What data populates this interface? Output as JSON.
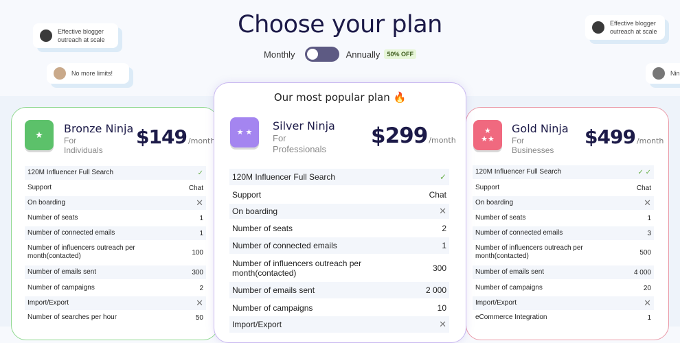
{
  "title": "Choose your plan",
  "toggle": {
    "monthly": "Monthly",
    "annually": "Annually",
    "discount": "50% OFF",
    "state": "monthly"
  },
  "bubbles": [
    {
      "text": "Effective blogger outreach at scale"
    },
    {
      "text": "No more limits!"
    },
    {
      "text": "Effective blogger outreach at scale"
    },
    {
      "text": "Nin So"
    }
  ],
  "colors": {
    "bronze": "#5cc16a",
    "silver": "#a485f0",
    "gold": "#f0697f",
    "heading": "#1c1a48"
  },
  "plans": [
    {
      "name": "Bronze Ninja",
      "for": "For",
      "audience": "Individuals",
      "price": "$149",
      "per": "/month",
      "icon": "star-icon",
      "features": [
        [
          "120M Influencer Full Search",
          "check"
        ],
        [
          "Support",
          "Chat"
        ],
        [
          "On boarding",
          "x"
        ],
        [
          "Number of seats",
          "1"
        ],
        [
          "Number of connected emails",
          "1"
        ],
        [
          "Number of influencers outreach per month(contacted)",
          "100"
        ],
        [
          "Number of emails sent",
          "300"
        ],
        [
          "Number of campaigns",
          "2"
        ],
        [
          "Import/Export",
          "x"
        ],
        [
          "Number of searches per hour",
          "50"
        ]
      ]
    },
    {
      "banner": "Our most popular plan 🔥",
      "name": "Silver Ninja",
      "for": "For",
      "audience": "Professionals",
      "price": "$299",
      "per": "/month",
      "icon": "two-stars-icon",
      "features": [
        [
          "120M Influencer Full Search",
          "check"
        ],
        [
          "Support",
          "Chat"
        ],
        [
          "On boarding",
          "x"
        ],
        [
          "Number of seats",
          "2"
        ],
        [
          "Number of connected emails",
          "1"
        ],
        [
          "Number of influencers outreach per month(contacted)",
          "300"
        ],
        [
          "Number of emails sent",
          "2 000"
        ],
        [
          "Number of campaigns",
          "10"
        ],
        [
          "Import/Export",
          "x"
        ]
      ]
    },
    {
      "name": "Gold Ninja",
      "for": "For",
      "audience": "Businesses",
      "price": "$499",
      "per": "/month",
      "icon": "three-stars-icon",
      "features": [
        [
          "120M Influencer Full Search",
          "check2"
        ],
        [
          "Support",
          "Chat"
        ],
        [
          "On boarding",
          "x"
        ],
        [
          "Number of seats",
          "1"
        ],
        [
          "Number of connected emails",
          "3"
        ],
        [
          "Number of influencers outreach per month(contacted)",
          "500"
        ],
        [
          "Number of emails sent",
          "4 000"
        ],
        [
          "Number of campaigns",
          "20"
        ],
        [
          "Import/Export",
          "x"
        ],
        [
          "eCommerce Integration",
          "1"
        ]
      ]
    }
  ]
}
